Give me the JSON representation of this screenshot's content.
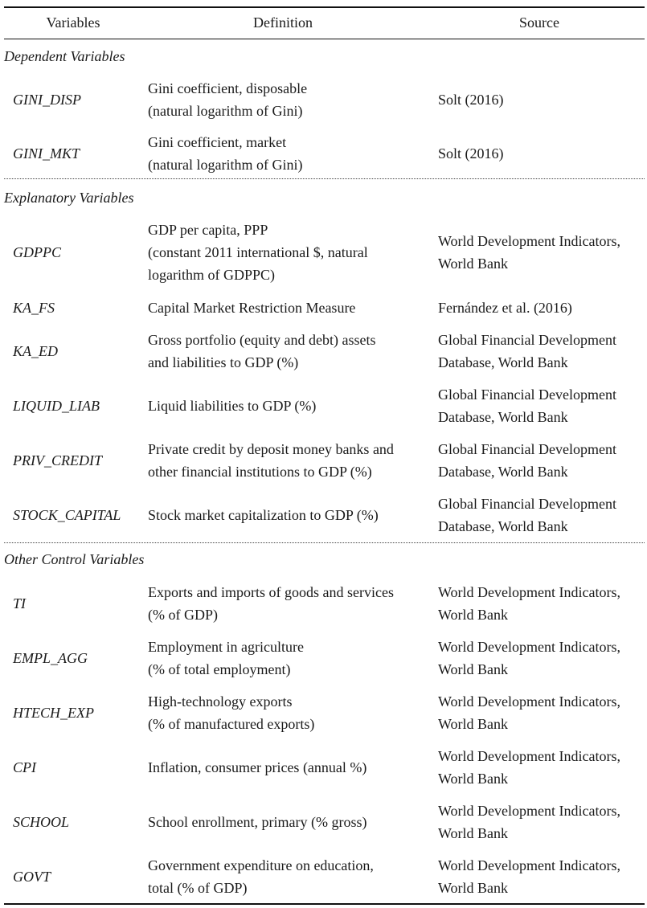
{
  "header": {
    "variables": "Variables",
    "definition": "Definition",
    "source": "Source"
  },
  "sections": [
    {
      "title": "Dependent Variables",
      "rows": [
        {
          "var": "GINI_DISP",
          "def": [
            "Gini coefficient, disposable",
            "(natural logarithm of Gini)"
          ],
          "src": [
            "Solt (2016)"
          ]
        },
        {
          "var": "GINI_MKT",
          "def": [
            "Gini coefficient, market",
            "(natural logarithm of Gini)"
          ],
          "src": [
            "Solt (2016)"
          ]
        }
      ]
    },
    {
      "title": "Explanatory Variables",
      "rows": [
        {
          "var": "GDPPC",
          "def": [
            "GDP per capita, PPP",
            "(constant 2011 international $, natural",
            "logarithm of GDPPC)"
          ],
          "src": [
            "World Development Indicators,",
            "World Bank"
          ]
        },
        {
          "var": "KA_FS",
          "def": [
            "Capital Market Restriction Measure"
          ],
          "src": [
            "Fernández et al. (2016)"
          ]
        },
        {
          "var": "KA_ED",
          "def": [
            "Gross portfolio (equity and debt) assets",
            "and liabilities to GDP (%)"
          ],
          "src": [
            "Global Financial Development",
            "Database, World Bank"
          ]
        },
        {
          "var": "LIQUID_LIAB",
          "def": [
            "Liquid liabilities to GDP (%)"
          ],
          "src": [
            "Global Financial Development",
            "Database, World Bank"
          ]
        },
        {
          "var": "PRIV_CREDIT",
          "def": [
            "Private credit by deposit money banks and",
            "other financial institutions to GDP (%)"
          ],
          "src": [
            "Global Financial Development",
            "Database, World Bank"
          ]
        },
        {
          "var": "STOCK_CAPITAL",
          "def": [
            "Stock market capitalization to GDP (%)"
          ],
          "src": [
            "Global Financial Development",
            "Database, World Bank"
          ]
        }
      ]
    },
    {
      "title": "Other Control Variables",
      "rows": [
        {
          "var": "TI",
          "def": [
            "Exports and imports of goods and services",
            "(% of GDP)"
          ],
          "src": [
            "World Development Indicators,",
            "World Bank"
          ]
        },
        {
          "var": "EMPL_AGG",
          "def": [
            "Employment in agriculture",
            "(% of total employment)"
          ],
          "src": [
            "World Development Indicators,",
            "World Bank"
          ]
        },
        {
          "var": "HTECH_EXP",
          "def": [
            "High-technology exports",
            "(% of manufactured exports)"
          ],
          "src": [
            "World Development Indicators,",
            "World Bank"
          ]
        },
        {
          "var": "CPI",
          "def": [
            "Inflation, consumer prices (annual %)"
          ],
          "src": [
            "World Development Indicators,",
            "World Bank"
          ]
        },
        {
          "var": "SCHOOL",
          "def": [
            "School enrollment, primary (% gross)"
          ],
          "src": [
            "World Development Indicators,",
            "World Bank"
          ]
        },
        {
          "var": "GOVT",
          "def": [
            "Government expenditure on education,",
            "total (% of GDP)"
          ],
          "src": [
            "World Development Indicators,",
            "World Bank"
          ]
        }
      ]
    }
  ]
}
